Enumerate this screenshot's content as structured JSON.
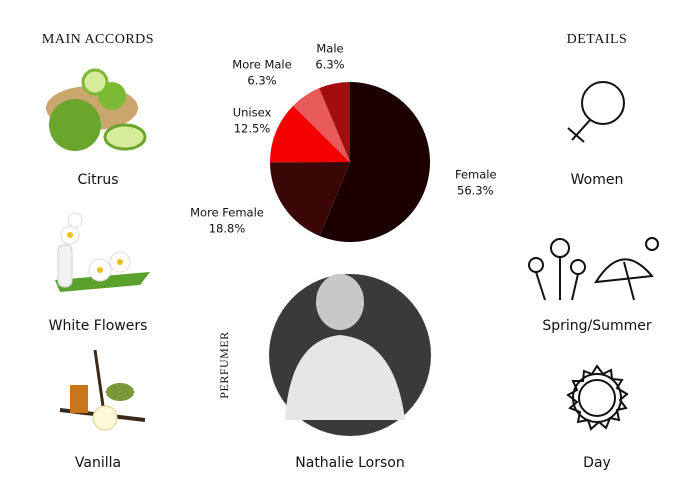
{
  "main_accords": {
    "title": "MAIN ACCORDS",
    "items": [
      "Citrus",
      "White Flowers",
      "Vanilla"
    ]
  },
  "details": {
    "title": "DETAILS",
    "items": [
      "Women",
      "Spring/Summer",
      "Day"
    ]
  },
  "perfumer": {
    "label": "PERFUMER",
    "name": "Nathalie Lorson"
  },
  "chart_data": {
    "type": "pie",
    "categories": [
      "Female",
      "More Female",
      "Unisex",
      "More Male",
      "Male"
    ],
    "values": [
      56.3,
      18.8,
      12.5,
      6.3,
      6.3
    ],
    "value_labels": [
      "56.3%",
      "18.8%",
      "12.5%",
      "6.3%",
      "6.3%"
    ],
    "colors": [
      "#1c0000",
      "#3a0606",
      "#f40000",
      "#e85a5a",
      "#a30d0d"
    ]
  }
}
